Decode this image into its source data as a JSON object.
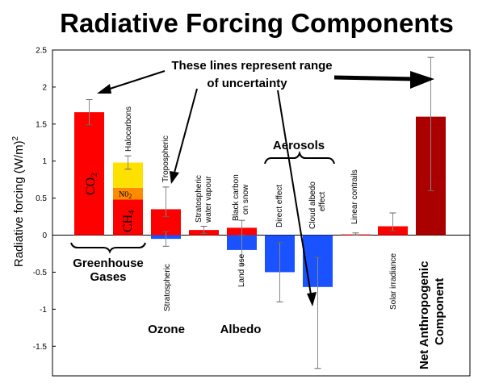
{
  "chart_data": {
    "type": "bar",
    "title": "Radiative Forcing Components",
    "ylabel": "Radiative forcing (W/m)",
    "ylabel_sup": "2",
    "ylim": [
      -1.9,
      2.5
    ],
    "yticks": [
      "2.5",
      "2",
      "1.5",
      "1",
      "0.5",
      "0",
      "-0.5",
      "-1",
      "-1.5"
    ],
    "ytick_values": [
      2.5,
      2,
      1.5,
      1,
      0.5,
      0,
      -0.5,
      -1,
      -1.5
    ],
    "bars": [
      {
        "key": "co2",
        "label": "CO",
        "label_sub": "2",
        "value": 1.66,
        "err_low": 1.49,
        "err_high": 1.83,
        "color": "#ff0000"
      },
      {
        "key": "halocarbons",
        "label": "Halocarbons",
        "stack": [
          {
            "key": "ch4",
            "label": "CH",
            "label_sub": "4",
            "value": 0.48,
            "color": "#ff0000"
          },
          {
            "key": "n2o",
            "label": "N0",
            "label_sub": "2",
            "value": 0.16,
            "color": "#ff8c00"
          },
          {
            "key": "halo",
            "label": "",
            "value": 0.34,
            "color": "#ffe100"
          }
        ],
        "err_low": 0.89,
        "err_high": 1.07
      },
      {
        "key": "tropospheric",
        "label": "Tropospheric",
        "value": 0.35,
        "err_low": 0.25,
        "err_high": 0.65,
        "color": "#ff0000"
      },
      {
        "key": "stratospheric",
        "label": "Stratospheric",
        "value": -0.05,
        "err_low": -0.15,
        "err_high": 0.05,
        "color": "#1a52ff"
      },
      {
        "key": "strat-water-vapour",
        "label": "Stratospheric water vapour",
        "value": 0.07,
        "err_low": 0.02,
        "err_high": 0.12,
        "color": "#ff0000"
      },
      {
        "key": "black-carbon-snow",
        "label": "Black carbon on snow",
        "value": 0.1,
        "err_low": 0.0,
        "err_high": 0.2,
        "color": "#ff0000"
      },
      {
        "key": "land-use",
        "label": "Land use",
        "value": -0.2,
        "err_low": -0.4,
        "err_high": 0.0,
        "color": "#1a52ff"
      },
      {
        "key": "direct-effect",
        "label": "Direct effect",
        "value": -0.5,
        "err_low": -0.9,
        "err_high": -0.1,
        "color": "#1a52ff"
      },
      {
        "key": "cloud-albedo",
        "label": "Cloud albedo effect",
        "value": -0.7,
        "err_low": -1.8,
        "err_high": -0.3,
        "color": "#1a52ff"
      },
      {
        "key": "linear-contrails",
        "label": "Linear contrails",
        "value": 0.01,
        "err_low": 0.003,
        "err_high": 0.03,
        "color": "#ff0000"
      },
      {
        "key": "solar-irradiance",
        "label": "Solar irradiance",
        "value": 0.12,
        "err_low": 0.06,
        "err_high": 0.3,
        "color": "#ff0000"
      },
      {
        "key": "net-anthropogenic",
        "label": "Net Anthropogenic Component",
        "value": 1.6,
        "err_low": 0.6,
        "err_high": 2.4,
        "color": "#aa0000"
      }
    ],
    "groups": {
      "greenhouse": "Greenhouse Gases",
      "ozone": "Ozone",
      "albedo": "Albedo",
      "aerosols": "Aerosols"
    },
    "annotation": "These lines represent range of uncertainty"
  }
}
